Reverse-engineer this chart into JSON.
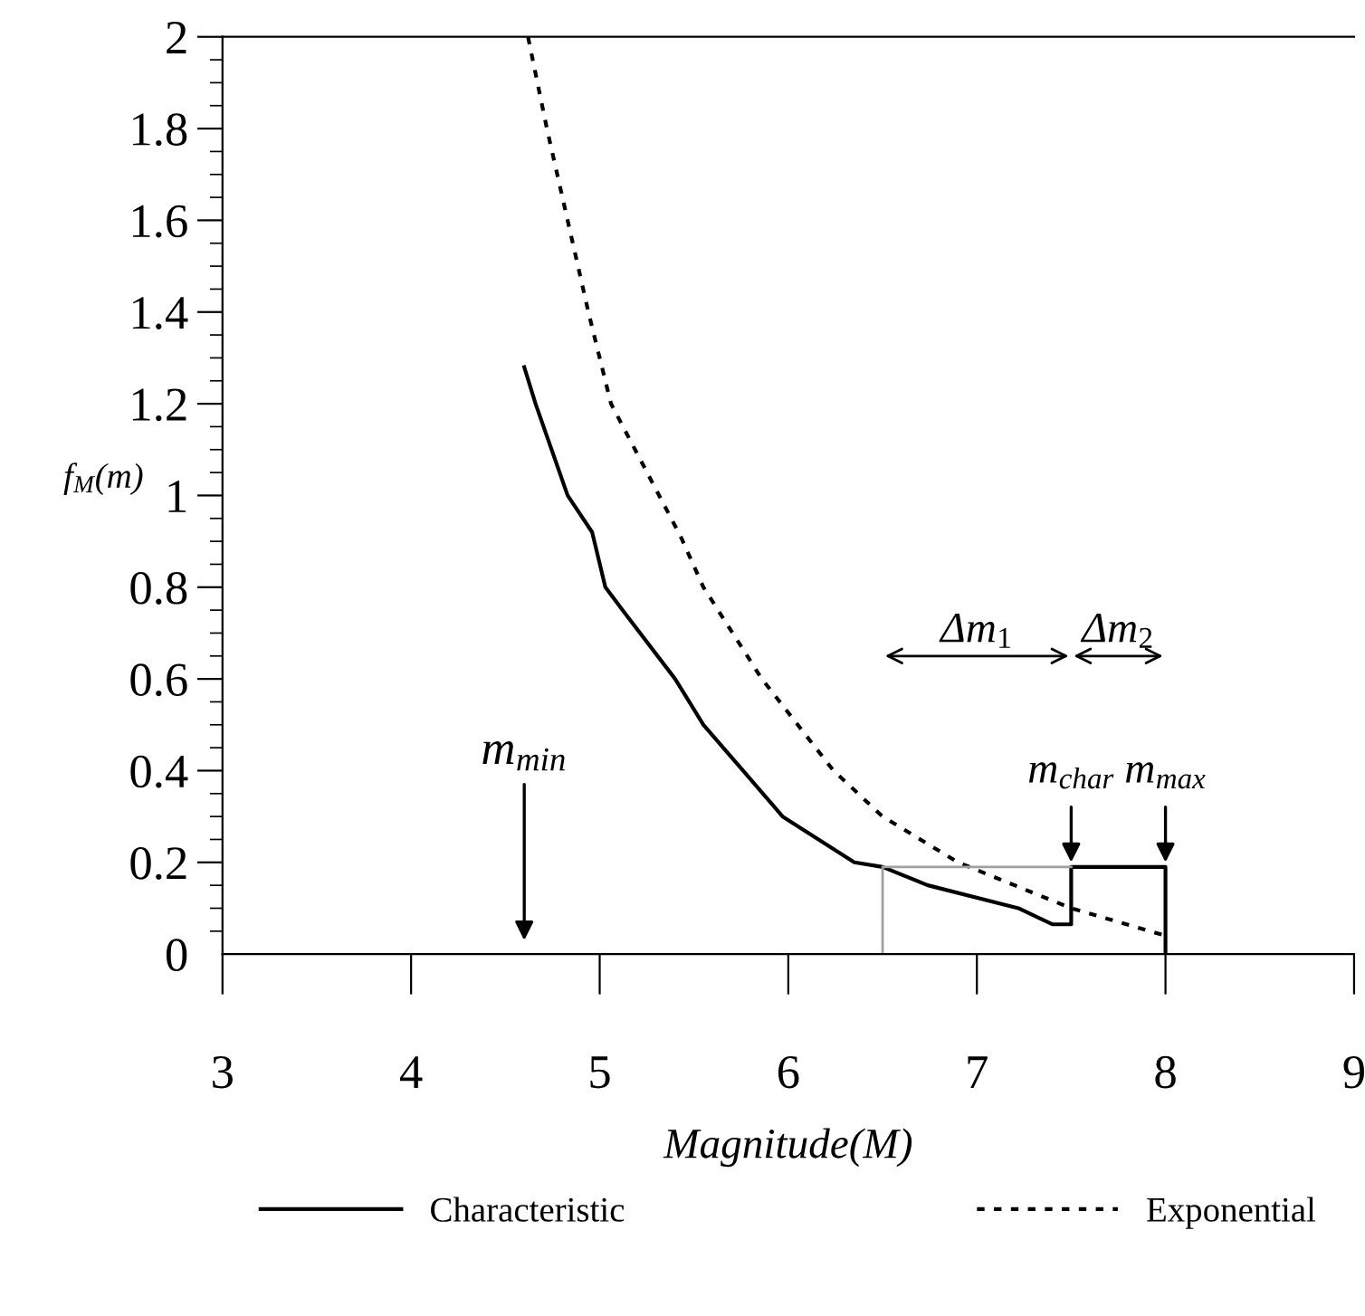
{
  "chart_data": {
    "type": "line",
    "xlabel": "Magnitude(M)",
    "ylabel": "f$_{M}$(m)",
    "xlim": [
      3,
      9
    ],
    "xticks": [
      3,
      4,
      5,
      6,
      7,
      8,
      9
    ],
    "ylim": [
      0,
      2
    ],
    "yticks": [
      0,
      0.2,
      0.4,
      0.6,
      0.8,
      1,
      1.2,
      1.4,
      1.6,
      1.8,
      2
    ],
    "series": [
      {
        "name": "Characteristic",
        "color": "#000000",
        "line_style": "solid",
        "x": [
          4.6,
          4.66,
          4.83,
          4.96,
          5.03,
          5.14,
          5.4,
          5.55,
          5.76,
          5.97,
          6.35,
          6.5,
          6.74,
          7.22,
          7.4,
          7.5,
          7.5,
          8.0,
          8.0
        ],
        "values": [
          1.28,
          1.2,
          1.0,
          0.92,
          0.8,
          0.74,
          0.6,
          0.5,
          0.4,
          0.3,
          0.2,
          0.19,
          0.15,
          0.1,
          0.065,
          0.065,
          0.19,
          0.19,
          0
        ]
      },
      {
        "name": "Exponential",
        "color": "#000000",
        "line_style": "dotted",
        "x": [
          4.62,
          4.72,
          4.83,
          4.94,
          5.06,
          5.43,
          5.55,
          5.86,
          6.24,
          6.5,
          6.9,
          7.5,
          8.0
        ],
        "values": [
          2.0,
          1.8,
          1.6,
          1.4,
          1.2,
          0.91,
          0.8,
          0.6,
          0.4,
          0.3,
          0.2,
          0.1,
          0.04
        ]
      },
      {
        "color": "#a0a0a0",
        "line_style": "solid",
        "x": [
          6.5,
          6.5,
          7.5
        ],
        "values": [
          0,
          0.19,
          0.19
        ]
      }
    ],
    "annotations": [
      "m$_{min}$",
      {
        "text": "m$_{char}$",
        "x": 7.5,
        "y": 0.2
      },
      {
        "text": "m$_{max}$",
        "x": 8.0,
        "y": 0.2
      },
      "Δm$_{1}$",
      "Δm$_{2}$"
    ],
    "legend": "bottom"
  }
}
